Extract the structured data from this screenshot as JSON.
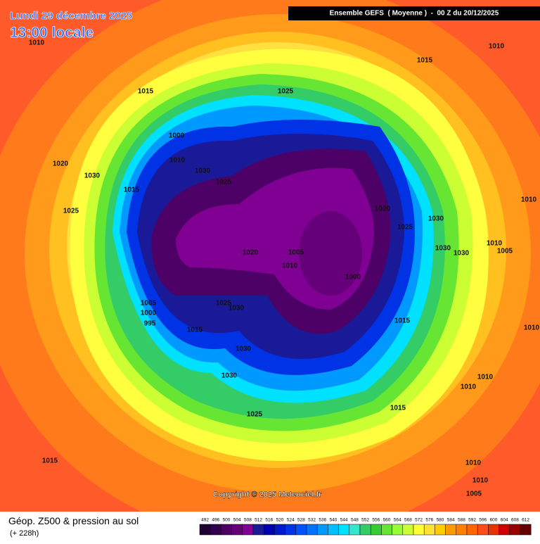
{
  "header": {
    "date": "Lundi 29 décembre 2025",
    "time": "13:00 locale",
    "model": "Ensemble GEFS  ( Moyenne )  -  00 Z du 20/12/2025"
  },
  "isobar_labels": [
    1010,
    1015,
    1010,
    1015,
    1025,
    1000,
    1010,
    1030,
    1020,
    1030,
    1025,
    1015,
    1025,
    1020,
    1025,
    1030,
    1010,
    1020,
    1005,
    1030,
    1030,
    1010,
    1005,
    1010,
    1000,
    1005,
    1000,
    995,
    1025,
    1030,
    1015,
    1015,
    1010,
    1030,
    1030,
    1010,
    1010,
    1015,
    1025,
    1015,
    1010,
    1010,
    1005
  ],
  "copyright": "Copyright © 2025 Meteociel.fr",
  "legend": {
    "title": "Géop. Z500 & pression au sol",
    "subtitle": "(+ 228h)",
    "levels": [
      492,
      496,
      500,
      504,
      508,
      512,
      516,
      520,
      524,
      528,
      532,
      536,
      540,
      544,
      548,
      552,
      556,
      560,
      564,
      568,
      572,
      576,
      580,
      584,
      588,
      592,
      596,
      600,
      604,
      608,
      612
    ],
    "colors": [
      "#1e0033",
      "#33004d",
      "#4d0066",
      "#66007a",
      "#800094",
      "#1a1a99",
      "#0000b3",
      "#0019cc",
      "#0033e6",
      "#0052ff",
      "#0073ff",
      "#0099ff",
      "#00bfff",
      "#00e0ff",
      "#33e6cc",
      "#33cc66",
      "#33cc33",
      "#66e633",
      "#99ff33",
      "#ccff33",
      "#ffff33",
      "#ffe033",
      "#ffcc00",
      "#ff9900",
      "#ff8000",
      "#ff6600",
      "#ff4d1a",
      "#e63300",
      "#cc0000",
      "#990000",
      "#660000"
    ]
  }
}
